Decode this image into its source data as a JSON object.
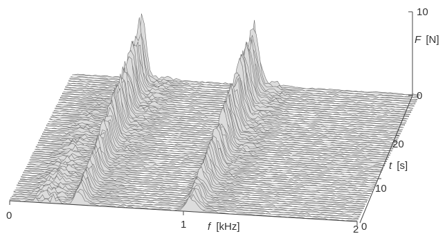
{
  "chart_data": {
    "type": "waterfall-3d",
    "x_axis": {
      "label_var": "f",
      "label_unit": "[kHz]",
      "ticks": [
        "0",
        "1",
        "2"
      ],
      "range": [
        0,
        2
      ]
    },
    "depth_axis": {
      "label_var": "t",
      "label_unit": "[s]",
      "ticks": [
        "10",
        "20"
      ],
      "range": [
        0,
        25
      ]
    },
    "z_axis": {
      "label_var": "F",
      "label_unit": "[N]",
      "ticks": [
        "0",
        "10"
      ],
      "range": [
        0,
        10
      ]
    },
    "depth_origin_label": "0",
    "trace_count": 60,
    "peaks_kHz": [
      0.4,
      1.05
    ],
    "peak_max_N": 8.5,
    "colors": {
      "surface": "#dcdcdc",
      "trace": "#6f6f6f",
      "axis": "#444444"
    }
  }
}
